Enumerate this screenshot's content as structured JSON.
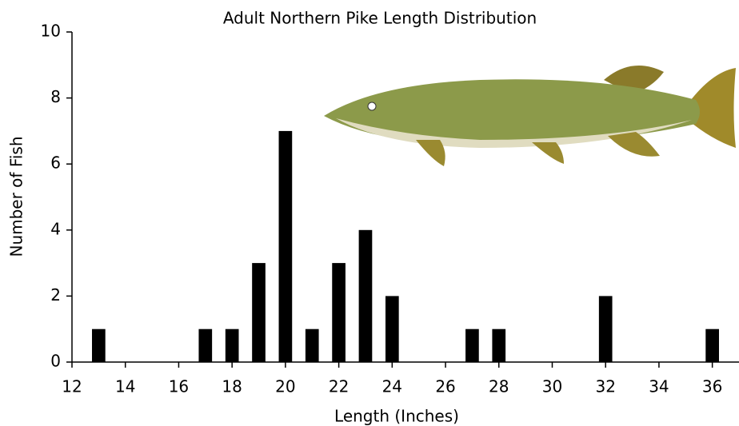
{
  "chart_data": {
    "type": "bar",
    "title": "Adult Northern Pike Length Distribution",
    "x_label": "Length (Inches)",
    "y_label": "Number of Fish",
    "x": [
      13,
      17,
      18,
      19,
      20,
      21,
      22,
      23,
      24,
      27,
      28,
      32,
      36
    ],
    "values": [
      1,
      1,
      1,
      3,
      7,
      1,
      3,
      4,
      2,
      1,
      1,
      2,
      1
    ],
    "color": "#000000",
    "xlim": [
      12,
      37
    ],
    "xticks": [
      12,
      14,
      16,
      18,
      20,
      22,
      24,
      26,
      28,
      30,
      32,
      34,
      36
    ],
    "ylim": [
      0,
      10
    ],
    "yticks": [
      0,
      2,
      4,
      6,
      8,
      10
    ]
  }
}
